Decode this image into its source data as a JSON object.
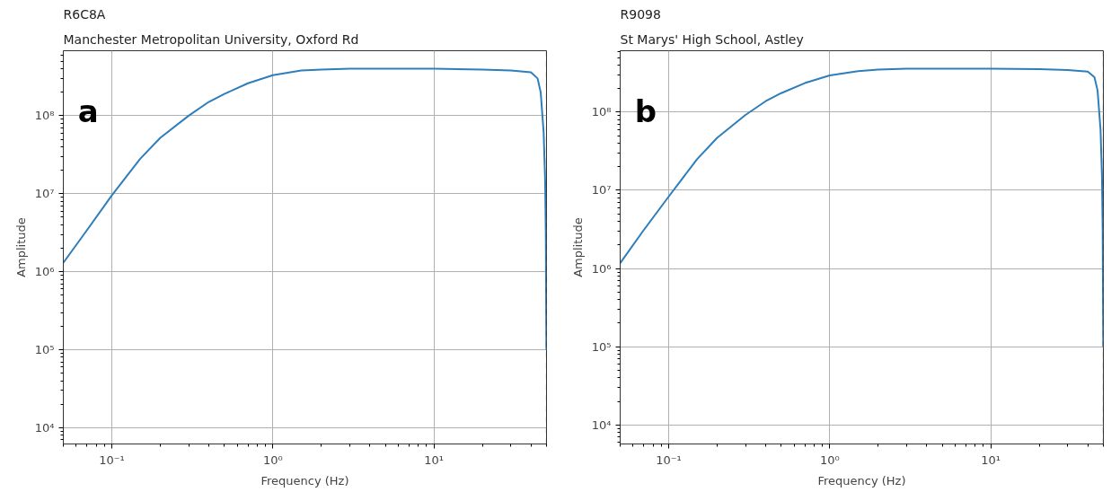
{
  "chart_data": [
    {
      "type": "line",
      "title": "R6C8A",
      "subtitle": "Manchester Metropolitan University, Oxford Rd",
      "xlabel": "Frequency (Hz)",
      "ylabel": "Amplitude",
      "annotations": [
        "a"
      ],
      "log": "xy",
      "grid": true,
      "marker": "none",
      "line_style": "solid",
      "xlim": [
        0.05,
        50
      ],
      "ylim": [
        6200,
        680000000
      ],
      "xticks": [
        {
          "value": 0.1,
          "label": "10⁻¹"
        },
        {
          "value": 1,
          "label": "10⁰"
        },
        {
          "value": 10,
          "label": "10¹"
        }
      ],
      "yticks": [
        {
          "value": 10000,
          "label": "10⁴"
        },
        {
          "value": 100000,
          "label": "10⁵"
        },
        {
          "value": 1000000,
          "label": "10⁶"
        },
        {
          "value": 10000000,
          "label": "10⁷"
        },
        {
          "value": 100000000,
          "label": "10⁸"
        }
      ],
      "ref_lines": [
        {
          "axis": "x",
          "value": 50,
          "label": null,
          "color": "#333333",
          "line_style": "dashed"
        }
      ],
      "x": [
        0.05,
        0.07,
        0.1,
        0.15,
        0.2,
        0.3,
        0.4,
        0.5,
        0.7,
        1,
        1.5,
        2,
        3,
        5,
        10,
        20,
        30,
        40,
        44,
        46,
        48,
        49,
        49.5,
        49.9
      ],
      "series": [
        {
          "color": "#2e7ebc",
          "values": [
            1300000,
            3400000,
            9500000,
            28000000,
            52000000,
            100000000,
            150000000,
            190000000,
            260000000,
            330000000,
            380000000,
            390000000,
            400000000,
            400000000,
            400000000,
            390000000,
            380000000,
            360000000,
            300000000,
            200000000,
            60000000,
            15000000,
            3000000,
            100000
          ]
        }
      ]
    },
    {
      "type": "line",
      "title": "R9098",
      "subtitle": "St Marys' High School, Astley",
      "xlabel": "Frequency (Hz)",
      "ylabel": "Amplitude",
      "annotations": [
        "b"
      ],
      "log": "xy",
      "grid": true,
      "marker": "none",
      "line_style": "solid",
      "xlim": [
        0.05,
        50
      ],
      "ylim": [
        5700,
        610000000
      ],
      "xticks": [
        {
          "value": 0.1,
          "label": "10⁻¹"
        },
        {
          "value": 1,
          "label": "10⁰"
        },
        {
          "value": 10,
          "label": "10¹"
        }
      ],
      "yticks": [
        {
          "value": 10000,
          "label": "10⁴"
        },
        {
          "value": 100000,
          "label": "10⁵"
        },
        {
          "value": 1000000,
          "label": "10⁶"
        },
        {
          "value": 10000000,
          "label": "10⁷"
        },
        {
          "value": 100000000,
          "label": "10⁸"
        }
      ],
      "ref_lines": [
        {
          "axis": "x",
          "value": 50,
          "label": null,
          "color": "#333333",
          "line_style": "dashed"
        }
      ],
      "x": [
        0.05,
        0.07,
        0.1,
        0.15,
        0.2,
        0.3,
        0.4,
        0.5,
        0.7,
        1,
        1.5,
        2,
        3,
        5,
        10,
        20,
        30,
        40,
        44,
        46,
        48,
        49,
        49.5,
        49.9
      ],
      "series": [
        {
          "color": "#2e7ebc",
          "values": [
            1170000,
            3100000,
            8300000,
            25000000,
            47000000,
            92000000,
            138000000,
            175000000,
            235000000,
            295000000,
            335000000,
            350000000,
            360000000,
            360000000,
            360000000,
            355000000,
            345000000,
            330000000,
            280000000,
            190000000,
            60000000,
            15000000,
            3000000,
            100000
          ]
        }
      ]
    }
  ]
}
